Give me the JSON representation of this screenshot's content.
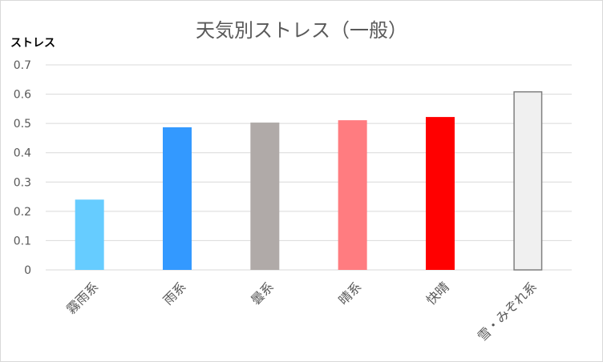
{
  "chart_data": {
    "type": "bar",
    "title": "天気別ストレス（一般）",
    "xlabel": "",
    "ylabel": "ストレス",
    "ylim": [
      0,
      0.7
    ],
    "yticks": [
      "0",
      "0.1",
      "0.2",
      "0.3",
      "0.4",
      "0.5",
      "0.6",
      "0.7"
    ],
    "grid": true,
    "legend": "none",
    "categories": [
      "霧雨系",
      "雨系",
      "曇系",
      "晴系",
      "快晴",
      "雪・みぞれ系"
    ],
    "values": [
      0.24,
      0.487,
      0.503,
      0.511,
      0.522,
      0.61
    ],
    "colors": [
      "#66ccff",
      "#3399ff",
      "#b0aaa8",
      "#ff7c80",
      "#ff0000",
      "#f0f0f0"
    ],
    "bar_outline_colors": [
      "none",
      "none",
      "none",
      "none",
      "none",
      "#7f7f7f"
    ]
  }
}
